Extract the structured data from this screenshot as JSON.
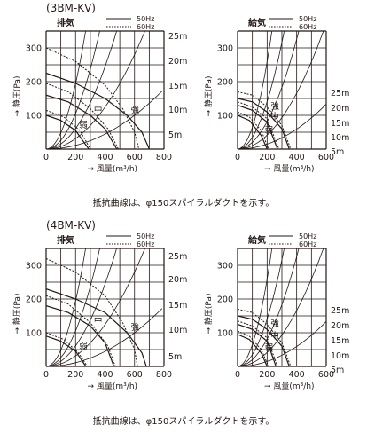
{
  "groups": [
    {
      "model": "(3BM-KV)",
      "note": "抵抗曲線は、φ150スパイラルダクトを示す。",
      "charts": [
        {
          "title": "排気",
          "legend": [
            "50Hz",
            "60Hz"
          ],
          "xlim": [
            0,
            800
          ],
          "ylim": [
            0,
            350
          ],
          "xticks": [
            "0",
            "200",
            "400",
            "600",
            "800"
          ],
          "yticks": [
            "100",
            "200",
            "300"
          ],
          "xlabel": "→ 風量(m³/h)",
          "ylabel": "→ 静圧(Pa)",
          "duct_lengths": [
            "25m",
            "20m",
            "15m",
            "10m",
            "5m"
          ],
          "speeds": [
            {
              "name": "強",
              "hz50": [
                [
                  0,
                  225
                ],
                [
                  200,
                  195
                ],
                [
                  400,
                  150
                ],
                [
                  550,
                  100
                ],
                [
                  650,
                  50
                ],
                [
                  700,
                  0
                ]
              ],
              "hz60": [
                [
                  0,
                  300
                ],
                [
                  200,
                  260
                ],
                [
                  400,
                  190
                ],
                [
                  520,
                  120
                ],
                [
                  600,
                  50
                ],
                [
                  630,
                  0
                ]
              ]
            },
            {
              "name": "中",
              "hz50": [
                [
                  0,
                  160
                ],
                [
                  150,
                  140
                ],
                [
                  300,
                  100
                ],
                [
                  400,
                  60
                ],
                [
                  480,
                  0
                ]
              ],
              "hz60": [
                [
                  0,
                  195
                ],
                [
                  150,
                  170
                ],
                [
                  300,
                  120
                ],
                [
                  420,
                  60
                ],
                [
                  490,
                  0
                ]
              ]
            },
            {
              "name": "弱",
              "hz50": [
                [
                  0,
                  100
                ],
                [
                  100,
                  85
                ],
                [
                  200,
                  55
                ],
                [
                  290,
                  0
                ]
              ],
              "hz60": [
                [
                  0,
                  115
                ],
                [
                  120,
                  95
                ],
                [
                  230,
                  55
                ],
                [
                  300,
                  0
                ]
              ]
            }
          ]
        },
        {
          "title": "給気",
          "legend": [
            "50Hz",
            "60Hz"
          ],
          "xlim": [
            0,
            600
          ],
          "ylim": [
            0,
            350
          ],
          "xticks": [
            "0",
            "200",
            "400",
            "600"
          ],
          "yticks": [
            "100",
            "200",
            "300"
          ],
          "xlabel": "→ 風量(m³/h)",
          "ylabel": "→ 静圧(Pa)",
          "duct_lengths": [
            "25m",
            "20m",
            "15m",
            "10m",
            "5m"
          ],
          "speeds": [
            {
              "name": "強",
              "hz50": [
                [
                  0,
                  150
                ],
                [
                  100,
                  140
                ],
                [
                  200,
                  110
                ],
                [
                  300,
                  60
                ],
                [
                  350,
                  0
                ]
              ],
              "hz60": [
                [
                  0,
                  170
                ],
                [
                  100,
                  160
                ],
                [
                  200,
                  125
                ],
                [
                  300,
                  70
                ],
                [
                  360,
                  0
                ]
              ]
            },
            {
              "name": "中",
              "hz50": [
                [
                  0,
                  130
                ],
                [
                  100,
                  115
                ],
                [
                  200,
                  80
                ],
                [
                  270,
                  0
                ]
              ],
              "hz60": [
                [
                  0,
                  140
                ],
                [
                  100,
                  125
                ],
                [
                  200,
                  90
                ],
                [
                  280,
                  0
                ]
              ]
            },
            {
              "name": "弱",
              "hz50": [
                [
                  0,
                  100
                ],
                [
                  80,
                  85
                ],
                [
                  160,
                  40
                ],
                [
                  200,
                  0
                ]
              ],
              "hz60": [
                [
                  0,
                  110
                ],
                [
                  80,
                  95
                ],
                [
                  160,
                  55
                ],
                [
                  210,
                  0
                ]
              ]
            }
          ]
        }
      ]
    },
    {
      "model": "(4BM-KV)",
      "note": "抵抗曲線は、φ150スパイラルダクトを示す。",
      "charts": [
        {
          "title": "排気",
          "legend": [
            "50Hz",
            "60Hz"
          ],
          "xlim": [
            0,
            800
          ],
          "ylim": [
            0,
            350
          ],
          "xticks": [
            "0",
            "200",
            "400",
            "600",
            "800"
          ],
          "yticks": [
            "100",
            "200",
            "300"
          ],
          "xlabel": "→ 風量(m³/h)",
          "ylabel": "→ 静圧(Pa)",
          "duct_lengths": [
            "25m",
            "20m",
            "15m",
            "10m",
            "5m"
          ],
          "speeds": [
            {
              "name": "強",
              "hz50": [
                [
                  0,
                  230
                ],
                [
                  200,
                  200
                ],
                [
                  400,
                  160
                ],
                [
                  550,
                  100
                ],
                [
                  650,
                  40
                ],
                [
                  680,
                  0
                ]
              ],
              "hz60": [
                [
                  0,
                  320
                ],
                [
                  200,
                  280
                ],
                [
                  400,
                  210
                ],
                [
                  520,
                  130
                ],
                [
                  600,
                  50
                ],
                [
                  620,
                  0
                ]
              ]
            },
            {
              "name": "中",
              "hz50": [
                [
                  0,
                  180
                ],
                [
                  150,
                  160
                ],
                [
                  300,
                  120
                ],
                [
                  400,
                  70
                ],
                [
                  460,
                  0
                ]
              ],
              "hz60": [
                [
                  0,
                  210
                ],
                [
                  150,
                  185
                ],
                [
                  300,
                  130
                ],
                [
                  420,
                  60
                ],
                [
                  470,
                  0
                ]
              ]
            },
            {
              "name": "弱",
              "hz50": [
                [
                  0,
                  90
                ],
                [
                  100,
                  75
                ],
                [
                  200,
                  45
                ],
                [
                  270,
                  0
                ]
              ],
              "hz60": [
                [
                  0,
                  100
                ],
                [
                  120,
                  80
                ],
                [
                  220,
                  40
                ],
                [
                  280,
                  0
                ]
              ]
            }
          ]
        },
        {
          "title": "給気",
          "legend": [
            "50Hz",
            "60Hz"
          ],
          "xlim": [
            0,
            600
          ],
          "ylim": [
            0,
            350
          ],
          "xticks": [
            "0",
            "200",
            "400",
            "600"
          ],
          "yticks": [
            "100",
            "200",
            "300"
          ],
          "xlabel": "→ 風量(m³/h)",
          "ylabel": "→ 静圧(Pa)",
          "duct_lengths": [
            "25m",
            "20m",
            "15m",
            "10m",
            "5m"
          ],
          "speeds": [
            {
              "name": "強",
              "hz50": [
                [
                  0,
                  150
                ],
                [
                  100,
                  140
                ],
                [
                  200,
                  110
                ],
                [
                  300,
                  60
                ],
                [
                  350,
                  0
                ]
              ],
              "hz60": [
                [
                  0,
                  170
                ],
                [
                  100,
                  160
                ],
                [
                  200,
                  125
                ],
                [
                  300,
                  70
                ],
                [
                  360,
                  0
                ]
              ]
            },
            {
              "name": "中",
              "hz50": [
                [
                  0,
                  125
                ],
                [
                  100,
                  110
                ],
                [
                  200,
                  75
                ],
                [
                  260,
                  0
                ]
              ],
              "hz60": [
                [
                  0,
                  135
                ],
                [
                  100,
                  120
                ],
                [
                  200,
                  85
                ],
                [
                  270,
                  0
                ]
              ]
            },
            {
              "name": "弱",
              "hz50": [
                [
                  0,
                  95
                ],
                [
                  80,
                  80
                ],
                [
                  160,
                  40
                ],
                [
                  200,
                  0
                ]
              ],
              "hz60": [
                [
                  0,
                  105
                ],
                [
                  80,
                  90
                ],
                [
                  160,
                  50
                ],
                [
                  210,
                  0
                ]
              ]
            }
          ]
        }
      ]
    }
  ],
  "chart_data": [
    {
      "type": "line",
      "title": "排気",
      "xlabel": "風量(m³/h)",
      "ylabel": "静圧(Pa)",
      "xlim": [
        0,
        800
      ],
      "ylim": [
        0,
        350
      ],
      "grid": true,
      "legend": [
        "50Hz",
        "60Hz"
      ],
      "series": [
        {
          "name": "強",
          "x": [
            0,
            200,
            400,
            550,
            650,
            700
          ],
          "y": [
            225,
            195,
            150,
            100,
            50,
            0
          ]
        },
        {
          "name": "中",
          "x": [
            0,
            150,
            300,
            400,
            480
          ],
          "y": [
            160,
            140,
            100,
            60,
            0
          ]
        },
        {
          "name": "弱",
          "x": [
            0,
            100,
            200,
            290
          ],
          "y": [
            100,
            85,
            55,
            0
          ]
        },
        {
          "name": "25m",
          "x": [
            0,
            200
          ],
          "y": [
            0,
            350
          ]
        },
        {
          "name": "5m",
          "x": [
            0,
            800
          ],
          "y": [
            0,
            80
          ]
        }
      ]
    },
    {
      "type": "line",
      "title": "給気",
      "xlabel": "風量(m³/h)",
      "ylabel": "静圧(Pa)",
      "xlim": [
        0,
        600
      ],
      "ylim": [
        0,
        350
      ],
      "grid": true,
      "legend": [
        "50Hz",
        "60Hz"
      ],
      "series": [
        {
          "name": "強",
          "x": [
            0,
            100,
            200,
            300,
            350
          ],
          "y": [
            150,
            140,
            110,
            60,
            0
          ]
        },
        {
          "name": "中",
          "x": [
            0,
            100,
            200,
            270
          ],
          "y": [
            130,
            115,
            80,
            0
          ]
        },
        {
          "name": "弱",
          "x": [
            0,
            80,
            160,
            200
          ],
          "y": [
            100,
            85,
            40,
            0
          ]
        }
      ]
    },
    {
      "type": "line",
      "title": "排気",
      "xlabel": "風量(m³/h)",
      "ylabel": "静圧(Pa)",
      "xlim": [
        0,
        800
      ],
      "ylim": [
        0,
        350
      ],
      "grid": true,
      "legend": [
        "50Hz",
        "60Hz"
      ],
      "series": [
        {
          "name": "強",
          "x": [
            0,
            200,
            400,
            550,
            650,
            680
          ],
          "y": [
            230,
            200,
            160,
            100,
            40,
            0
          ]
        },
        {
          "name": "中",
          "x": [
            0,
            150,
            300,
            400,
            460
          ],
          "y": [
            180,
            160,
            120,
            70,
            0
          ]
        },
        {
          "name": "弱",
          "x": [
            0,
            100,
            200,
            270
          ],
          "y": [
            90,
            75,
            45,
            0
          ]
        }
      ]
    },
    {
      "type": "line",
      "title": "給気",
      "xlabel": "風量(m³/h)",
      "ylabel": "静圧(Pa)",
      "xlim": [
        0,
        600
      ],
      "ylim": [
        0,
        350
      ],
      "grid": true,
      "legend": [
        "50Hz",
        "60Hz"
      ],
      "series": [
        {
          "name": "強",
          "x": [
            0,
            100,
            200,
            300,
            350
          ],
          "y": [
            150,
            140,
            110,
            60,
            0
          ]
        },
        {
          "name": "中",
          "x": [
            0,
            100,
            200,
            260
          ],
          "y": [
            125,
            110,
            75,
            0
          ]
        },
        {
          "name": "弱",
          "x": [
            0,
            80,
            160,
            200
          ],
          "y": [
            95,
            80,
            40,
            0
          ]
        }
      ]
    }
  ]
}
